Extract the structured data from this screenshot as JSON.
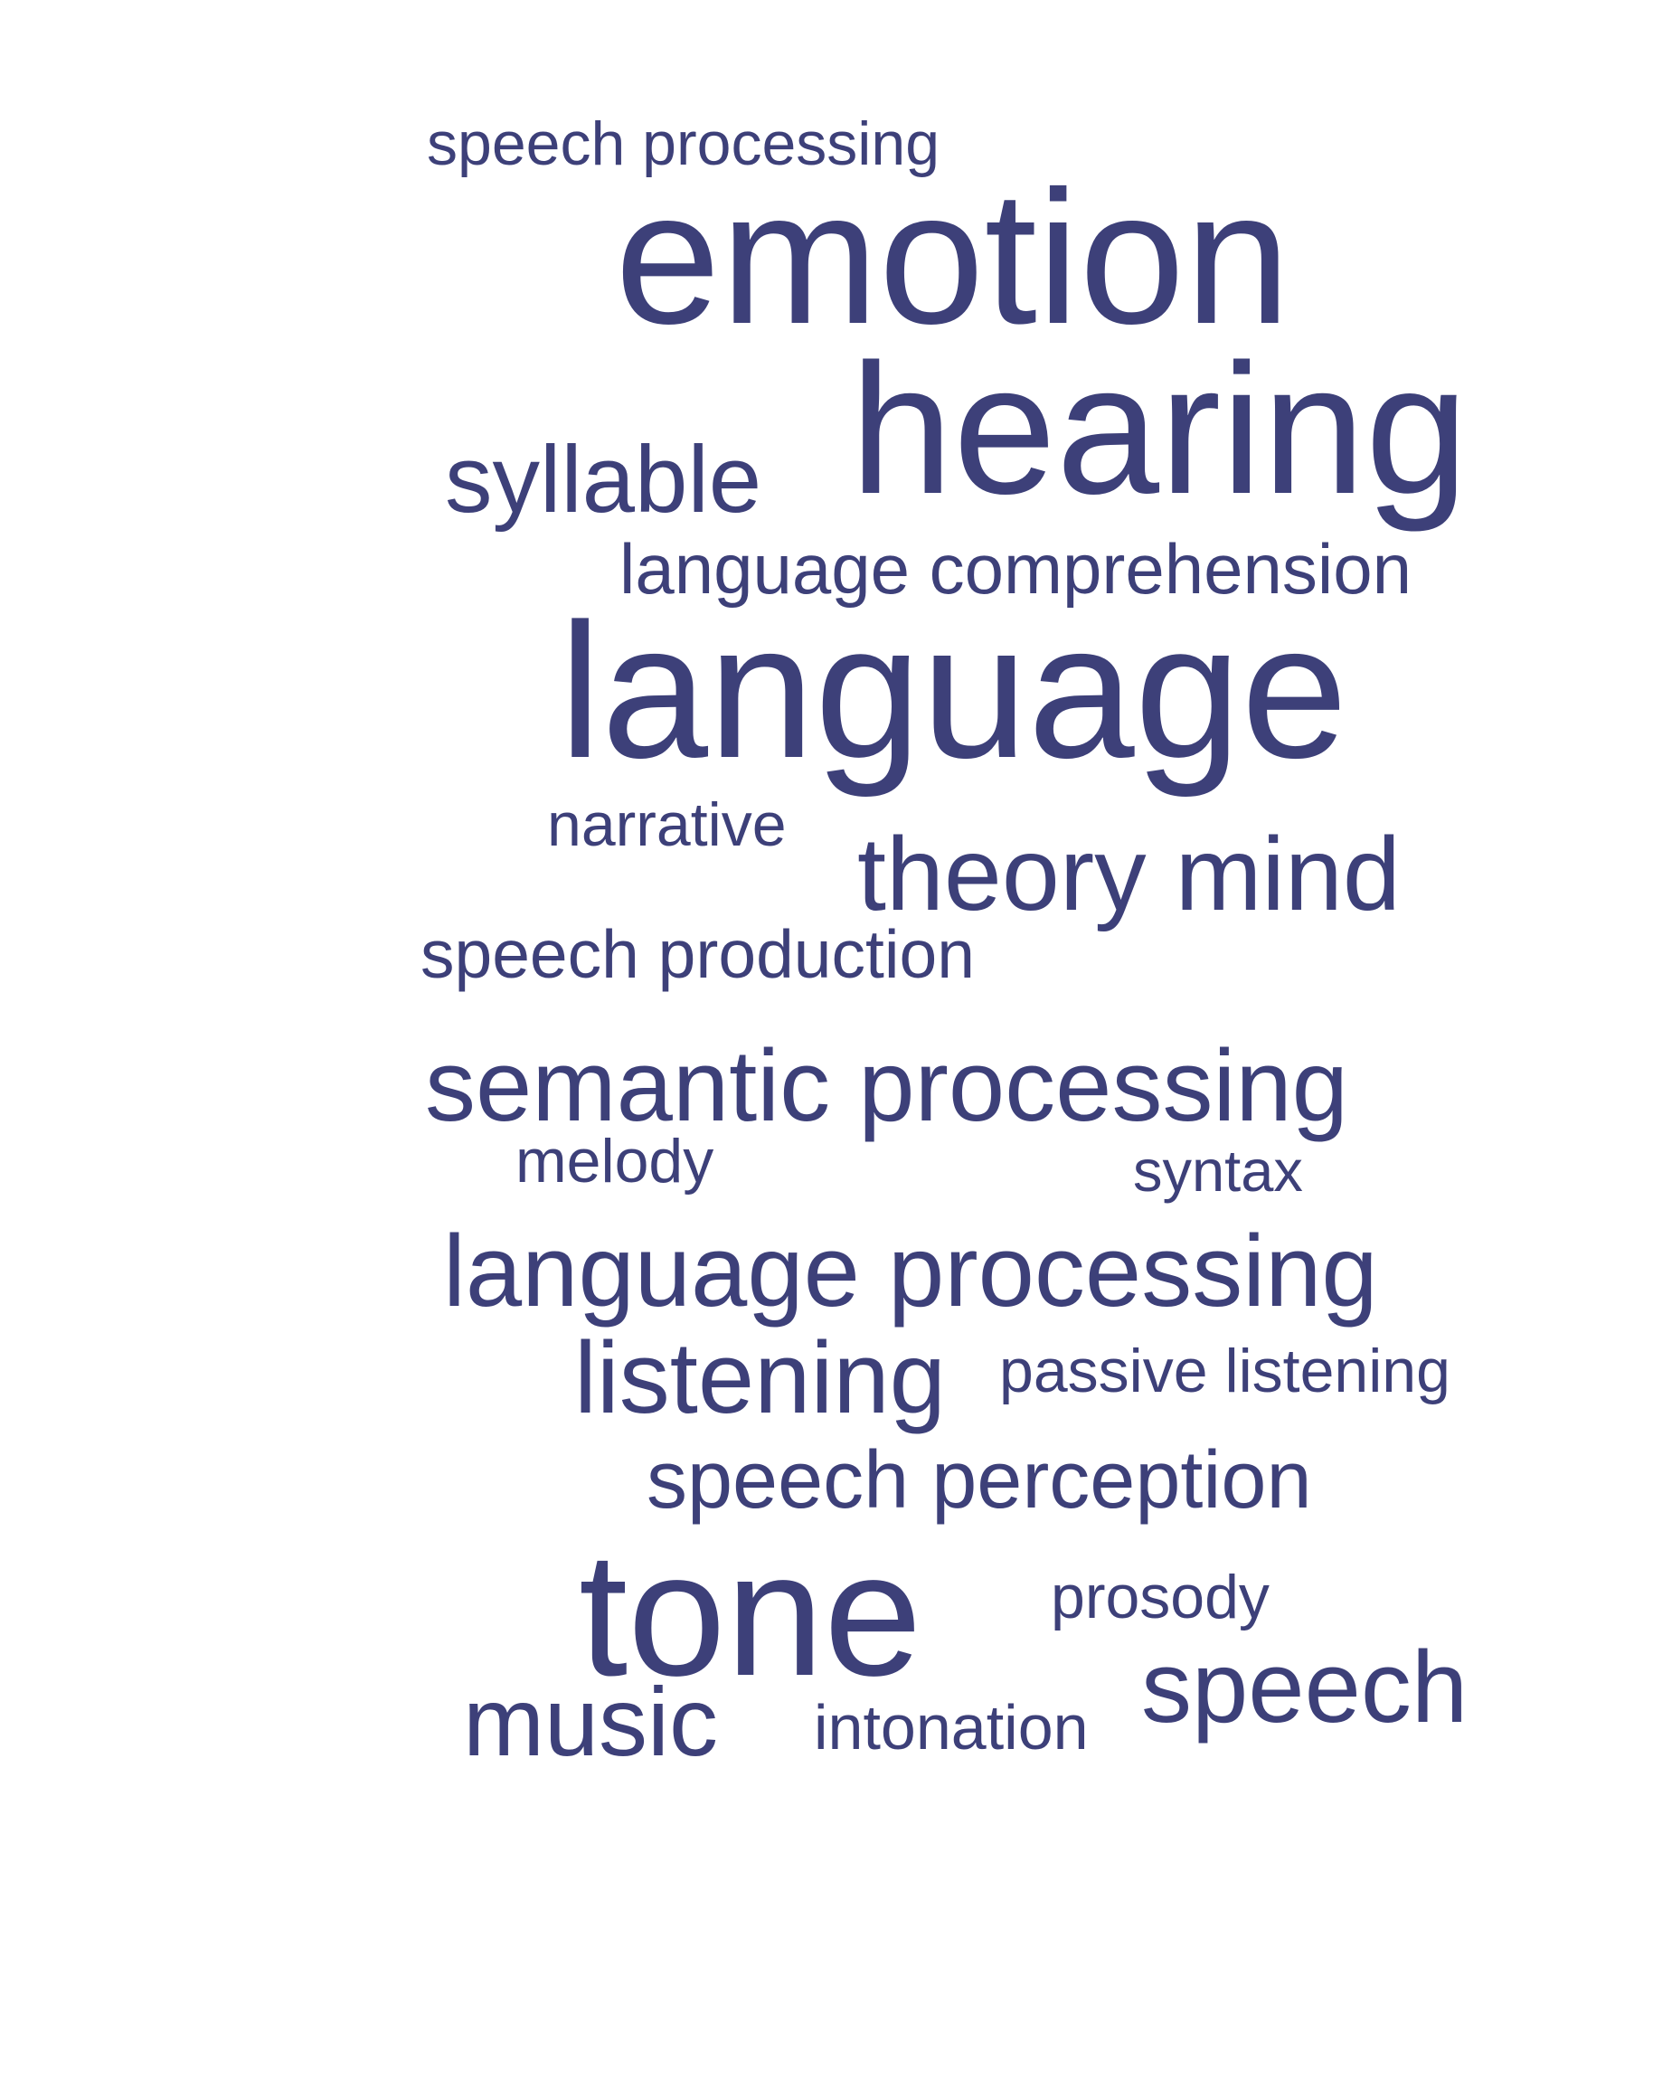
{
  "colors": {
    "background": "#ffffff",
    "word": "#3d4079"
  },
  "words": {
    "speech_processing": "speech processing",
    "emotion": "emotion",
    "hearing": "hearing",
    "syllable": "syllable",
    "language_comprehension": "language comprehension",
    "language": "language",
    "narrative": "narrative",
    "theory_mind": "theory mind",
    "speech_production": "speech production",
    "semantic_processing": "semantic processing",
    "melody": "melody",
    "syntax": "syntax",
    "language_processing": "language processing",
    "listening": "listening",
    "passive_listening": "passive listening",
    "speech_perception": "speech perception",
    "tone": "tone",
    "prosody": "prosody",
    "speech": "speech",
    "music": "music",
    "intonation": "intonation"
  }
}
